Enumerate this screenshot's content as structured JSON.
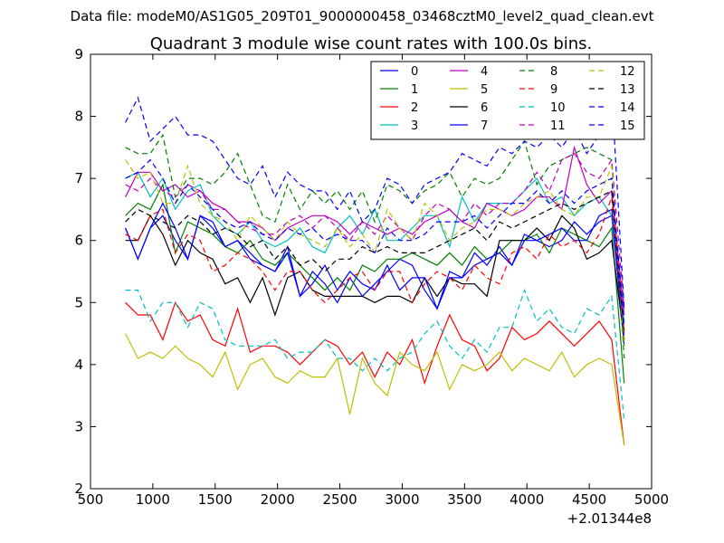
{
  "header": {
    "data_file": "Data file: modeM0/AS1G05_209T01_9000000458_03468cztM0_level2_quad_clean.evt"
  },
  "chart_data": {
    "type": "line",
    "title": "Quadrant 3 module wise count rates with 100.0s bins.",
    "xlabel": "",
    "ylabel": "",
    "x_offset_label": "+2.01344e8",
    "xlim": [
      500,
      5000
    ],
    "ylim": [
      2,
      9
    ],
    "x_ticks": [
      "500",
      "1000",
      "1500",
      "2000",
      "2500",
      "3000",
      "3500",
      "4000",
      "4500",
      "5000"
    ],
    "y_ticks": [
      "2",
      "3",
      "4",
      "5",
      "6",
      "7",
      "8",
      "9"
    ],
    "grid": false,
    "legend_position": "top-right",
    "legend_columns": 4,
    "x": [
      780,
      880,
      980,
      1080,
      1180,
      1280,
      1380,
      1480,
      1580,
      1680,
      1780,
      1880,
      1980,
      2080,
      2180,
      2280,
      2380,
      2480,
      2580,
      2680,
      2780,
      2880,
      2980,
      3080,
      3180,
      3280,
      3380,
      3480,
      3580,
      3680,
      3780,
      3880,
      3980,
      4080,
      4180,
      4280,
      4380,
      4480,
      4580,
      4680,
      4780
    ],
    "series": [
      {
        "name": "0",
        "color": "#0000ff",
        "dash": "solid",
        "values": [
          6.2,
          5.7,
          6.2,
          6.4,
          6.0,
          5.7,
          6.4,
          6.2,
          5.9,
          6.0,
          5.8,
          5.6,
          5.5,
          5.9,
          5.1,
          5.5,
          5.3,
          5.0,
          5.4,
          5.1,
          5.3,
          5.5,
          5.7,
          5.6,
          5.2,
          4.9,
          5.5,
          5.4,
          5.8,
          5.6,
          5.9,
          5.6,
          6.0,
          6.0,
          5.9,
          6.0,
          6.3,
          6.1,
          6.3,
          6.4,
          4.4
        ]
      },
      {
        "name": "1",
        "color": "#008000",
        "dash": "solid",
        "values": [
          6.4,
          6.6,
          6.5,
          6.9,
          5.8,
          6.3,
          6.2,
          6.1,
          5.9,
          5.8,
          6.0,
          5.7,
          5.6,
          5.8,
          5.6,
          5.4,
          5.2,
          5.4,
          5.2,
          5.6,
          5.5,
          5.7,
          5.7,
          5.8,
          5.7,
          5.6,
          5.8,
          5.6,
          5.9,
          5.7,
          5.8,
          6.0,
          6.0,
          6.1,
          5.8,
          6.2,
          6.1,
          6.0,
          5.9,
          6.2,
          3.7
        ]
      },
      {
        "name": "2",
        "color": "#ff0000",
        "dash": "solid",
        "values": [
          5.0,
          4.8,
          4.8,
          4.4,
          5.0,
          4.7,
          4.8,
          4.4,
          4.3,
          4.9,
          4.2,
          4.3,
          4.3,
          4.2,
          4.0,
          4.2,
          4.4,
          4.3,
          4.0,
          4.2,
          3.8,
          4.2,
          4.0,
          4.4,
          3.7,
          4.3,
          4.8,
          4.4,
          4.3,
          3.9,
          4.1,
          4.6,
          4.4,
          4.5,
          4.7,
          4.5,
          4.3,
          4.5,
          4.7,
          4.4,
          2.7
        ]
      },
      {
        "name": "3",
        "color": "#00bfbf",
        "dash": "solid",
        "values": [
          7.0,
          7.1,
          6.7,
          7.0,
          6.5,
          6.8,
          6.9,
          6.4,
          6.2,
          6.1,
          6.3,
          6.0,
          5.9,
          6.0,
          6.2,
          5.9,
          5.8,
          6.2,
          6.4,
          6.1,
          6.5,
          6.0,
          6.0,
          6.2,
          6.4,
          6.4,
          5.9,
          6.7,
          6.3,
          6.6,
          6.6,
          6.6,
          6.8,
          7.0,
          6.6,
          6.7,
          6.4,
          6.6,
          6.7,
          6.4,
          4.7
        ]
      },
      {
        "name": "4",
        "color": "#bf00bf",
        "dash": "solid",
        "values": [
          6.7,
          7.1,
          7.1,
          6.8,
          6.9,
          6.7,
          6.8,
          6.6,
          6.5,
          6.3,
          6.3,
          6.2,
          6.0,
          6.2,
          6.3,
          6.4,
          6.4,
          6.3,
          6.1,
          6.3,
          6.2,
          6.1,
          6.2,
          6.1,
          6.3,
          6.4,
          6.5,
          6.3,
          6.2,
          6.6,
          6.5,
          6.4,
          6.5,
          6.7,
          6.7,
          6.5,
          7.5,
          6.9,
          6.6,
          6.8,
          4.8
        ]
      },
      {
        "name": "5",
        "color": "#bfbf00",
        "dash": "solid",
        "values": [
          4.5,
          4.1,
          4.2,
          4.1,
          4.3,
          4.1,
          4.0,
          3.8,
          4.2,
          3.6,
          4.0,
          4.1,
          3.8,
          3.7,
          3.9,
          3.8,
          3.8,
          4.1,
          3.2,
          4.1,
          3.7,
          3.5,
          4.2,
          4.0,
          3.9,
          4.2,
          3.6,
          4.0,
          3.9,
          4.0,
          4.2,
          3.9,
          4.1,
          4.0,
          3.9,
          4.2,
          3.8,
          4.0,
          4.1,
          4.0,
          2.7
        ]
      },
      {
        "name": "6",
        "color": "#000000",
        "dash": "solid",
        "values": [
          6.0,
          6.0,
          6.4,
          6.1,
          5.6,
          6.0,
          5.8,
          5.7,
          5.3,
          5.4,
          5.0,
          5.4,
          4.8,
          5.4,
          5.5,
          5.2,
          5.1,
          5.1,
          5.1,
          5.1,
          5.0,
          5.1,
          5.1,
          5.0,
          5.4,
          5.1,
          5.4,
          5.3,
          5.3,
          5.1,
          6.0,
          6.0,
          6.0,
          6.2,
          6.0,
          6.4,
          6.2,
          5.7,
          5.8,
          6.0,
          4.4
        ]
      },
      {
        "name": "7",
        "color": "#0000ff",
        "dash": "solid",
        "values": [
          6.2,
          5.7,
          6.2,
          6.6,
          6.2,
          5.7,
          6.4,
          6.3,
          5.9,
          6.0,
          5.7,
          5.6,
          5.5,
          5.8,
          5.1,
          5.3,
          5.6,
          5.2,
          5.5,
          5.3,
          5.2,
          5.6,
          5.2,
          5.4,
          5.4,
          4.9,
          5.4,
          5.4,
          5.6,
          5.7,
          5.8,
          5.6,
          6.1,
          6.0,
          6.1,
          6.2,
          6.0,
          6.0,
          6.4,
          6.5,
          4.3
        ]
      },
      {
        "name": "8",
        "color": "#008000",
        "dash": "dashed",
        "values": [
          7.5,
          7.4,
          7.4,
          7.7,
          6.7,
          7.0,
          7.0,
          6.9,
          7.1,
          7.4,
          6.9,
          6.4,
          6.3,
          6.9,
          6.5,
          6.8,
          6.6,
          6.8,
          6.5,
          6.8,
          6.3,
          6.9,
          6.8,
          6.6,
          6.8,
          6.9,
          7.1,
          6.7,
          7.0,
          6.9,
          7.0,
          7.3,
          7.6,
          6.9,
          7.2,
          7.3,
          7.4,
          7.5,
          7.4,
          7.3,
          4.1
        ]
      },
      {
        "name": "9",
        "color": "#ff0000",
        "dash": "dashed",
        "values": [
          6.1,
          6.0,
          6.4,
          6.5,
          5.8,
          6.1,
          6.0,
          5.5,
          5.6,
          5.8,
          5.7,
          5.5,
          5.2,
          5.5,
          5.5,
          5.2,
          5.0,
          5.2,
          5.4,
          5.5,
          5.2,
          5.5,
          5.5,
          5.0,
          5.3,
          5.5,
          5.4,
          5.2,
          5.6,
          5.4,
          5.3,
          5.8,
          5.9,
          5.7,
          6.1,
          5.9,
          6.0,
          5.8,
          6.1,
          6.7,
          4.5
        ]
      },
      {
        "name": "10",
        "color": "#00bfbf",
        "dash": "dashed",
        "values": [
          5.2,
          5.2,
          4.7,
          5.0,
          5.0,
          4.6,
          5.0,
          4.9,
          4.4,
          4.3,
          4.3,
          4.3,
          4.4,
          4.1,
          4.2,
          4.2,
          4.4,
          4.1,
          4.1,
          3.9,
          4.1,
          3.9,
          4.1,
          4.2,
          4.5,
          4.7,
          4.3,
          4.1,
          4.4,
          4.2,
          4.6,
          4.6,
          5.2,
          4.7,
          4.9,
          4.6,
          4.5,
          4.9,
          4.8,
          5.1,
          3.1
        ]
      },
      {
        "name": "11",
        "color": "#bf00bf",
        "dash": "dashed",
        "values": [
          6.9,
          6.8,
          7.0,
          6.8,
          6.7,
          6.9,
          6.8,
          6.5,
          6.5,
          6.3,
          6.2,
          6.1,
          6.1,
          6.3,
          6.4,
          6.2,
          6.4,
          6.2,
          6.0,
          6.3,
          6.1,
          6.4,
          6.2,
          6.0,
          6.4,
          6.6,
          6.5,
          6.3,
          6.6,
          6.4,
          6.6,
          6.6,
          6.8,
          7.1,
          6.8,
          7.3,
          7.4,
          7.1,
          7.0,
          7.3,
          4.9
        ]
      },
      {
        "name": "12",
        "color": "#bfbf00",
        "dash": "dashed",
        "values": [
          7.3,
          7.0,
          7.1,
          6.6,
          6.6,
          7.2,
          6.6,
          6.4,
          6.3,
          6.0,
          6.4,
          6.2,
          6.0,
          6.3,
          6.1,
          6.0,
          5.9,
          6.2,
          5.9,
          6.1,
          5.8,
          6.5,
          6.2,
          6.0,
          6.6,
          6.4,
          6.0,
          6.2,
          6.3,
          6.5,
          6.5,
          6.4,
          6.6,
          6.7,
          6.8,
          6.5,
          6.4,
          6.7,
          6.7,
          7.2,
          4.3
        ]
      },
      {
        "name": "13",
        "color": "#000000",
        "dash": "dashed",
        "values": [
          6.3,
          6.5,
          6.4,
          6.3,
          6.2,
          6.4,
          6.3,
          6.1,
          6.2,
          6.1,
          5.9,
          6.0,
          5.7,
          5.9,
          5.6,
          5.7,
          5.5,
          5.7,
          5.7,
          5.9,
          5.8,
          5.9,
          5.8,
          5.8,
          5.8,
          5.9,
          6.0,
          6.1,
          6.2,
          6.0,
          6.3,
          6.2,
          6.3,
          6.4,
          6.5,
          6.6,
          6.5,
          6.6,
          6.7,
          6.8,
          4.5
        ]
      },
      {
        "name": "14",
        "color": "#0000ff",
        "dash": "dashed",
        "values": [
          7.9,
          8.3,
          7.6,
          7.8,
          8.0,
          7.7,
          7.7,
          7.6,
          7.3,
          7.0,
          6.9,
          7.2,
          6.7,
          7.1,
          6.9,
          6.8,
          6.8,
          6.5,
          6.8,
          6.3,
          6.5,
          7.0,
          6.9,
          6.6,
          6.9,
          7.0,
          7.1,
          7.4,
          7.3,
          7.2,
          7.5,
          7.4,
          7.6,
          7.5,
          7.7,
          7.5,
          7.8,
          7.4,
          7.7,
          8.4,
          4.9
        ]
      },
      {
        "name": "15",
        "color": "#0000ff",
        "dash": "dashed",
        "values": [
          7.0,
          7.1,
          7.3,
          7.0,
          6.6,
          6.9,
          6.7,
          6.5,
          6.3,
          6.2,
          6.3,
          6.1,
          6.0,
          6.2,
          6.1,
          6.2,
          6.0,
          6.1,
          6.0,
          6.0,
          5.8,
          6.2,
          6.0,
          6.0,
          6.1,
          6.3,
          6.3,
          6.3,
          6.4,
          6.2,
          6.4,
          6.6,
          6.6,
          6.8,
          6.6,
          6.8,
          6.6,
          6.8,
          6.9,
          7.0,
          4.6
        ]
      }
    ]
  }
}
